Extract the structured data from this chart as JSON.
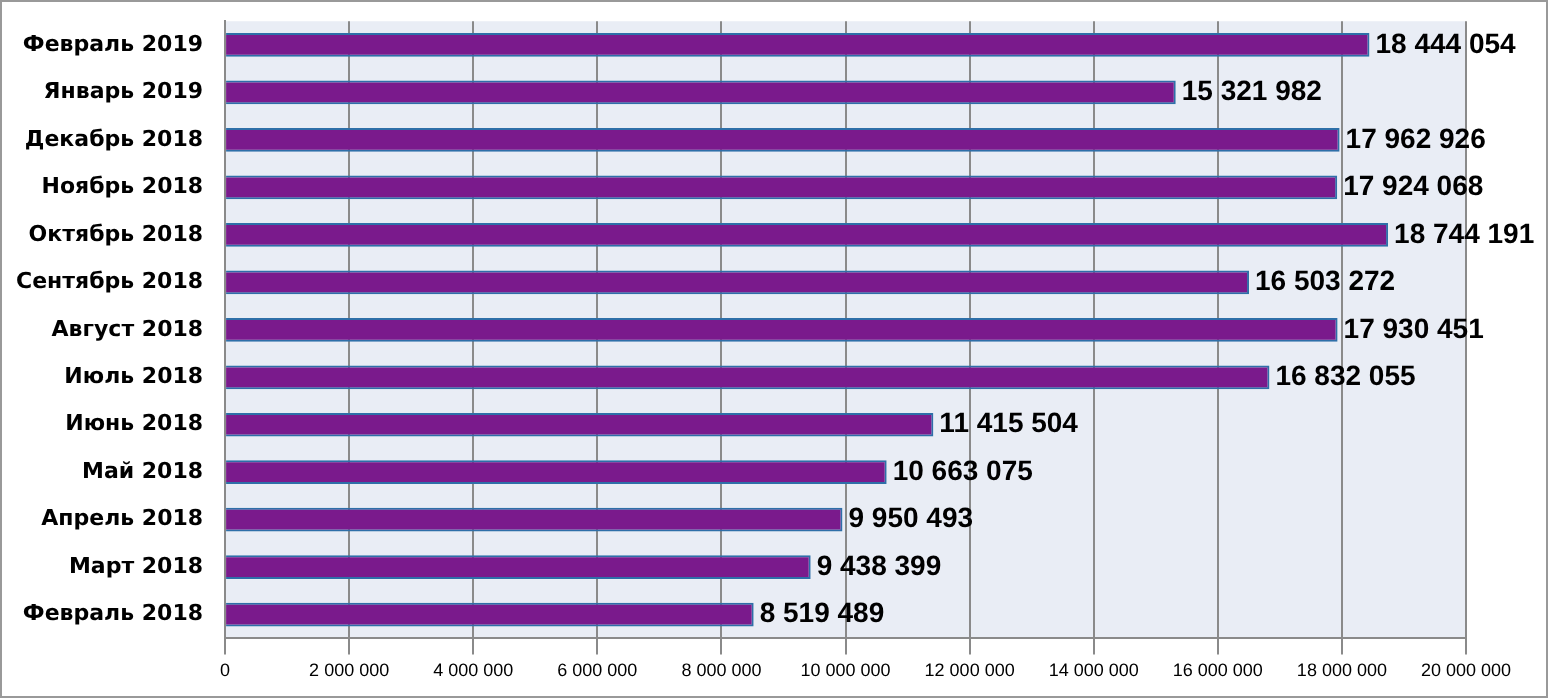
{
  "chart_data": {
    "type": "bar",
    "orientation": "horizontal",
    "categories": [
      "Февраль 2019",
      "Январь 2019",
      "Декабрь 2018",
      "Ноябрь 2018",
      "Октябрь 2018",
      "Сентябрь 2018",
      "Август 2018",
      "Июль 2018",
      "Июнь 2018",
      "Май 2018",
      "Апрель 2018",
      "Март 2018",
      "Февраль 2018"
    ],
    "values": [
      18444054,
      15321982,
      17962926,
      17924068,
      18744191,
      16503272,
      17930451,
      16832055,
      11415504,
      10663075,
      9950493,
      9438399,
      8519489
    ],
    "value_labels": [
      "18 444 054",
      "15 321 982",
      "17 962 926",
      "17 924 068",
      "18 744 191",
      "16 503 272",
      "17 930 451",
      "16 832 055",
      "11 415 504",
      "10 663 075",
      "9 950 493",
      "9 438 399",
      "8 519 489"
    ],
    "color": "#7a1a8c",
    "xlim": [
      0,
      20000000
    ],
    "xticks": [
      {
        "value": 0,
        "label": "0"
      },
      {
        "value": 2000000,
        "label": "2 000 000"
      },
      {
        "value": 4000000,
        "label": "4 000 000"
      },
      {
        "value": 6000000,
        "label": "6 000 000"
      },
      {
        "value": 8000000,
        "label": "8 000 000"
      },
      {
        "value": 10000000,
        "label": "10 000 000"
      },
      {
        "value": 12000000,
        "label": "12 000 000"
      },
      {
        "value": 14000000,
        "label": "14 000 000"
      },
      {
        "value": 16000000,
        "label": "16 000 000"
      },
      {
        "value": 18000000,
        "label": "18 000 000"
      },
      {
        "value": 20000000,
        "label": "20 000 000"
      }
    ],
    "grid": "x"
  }
}
